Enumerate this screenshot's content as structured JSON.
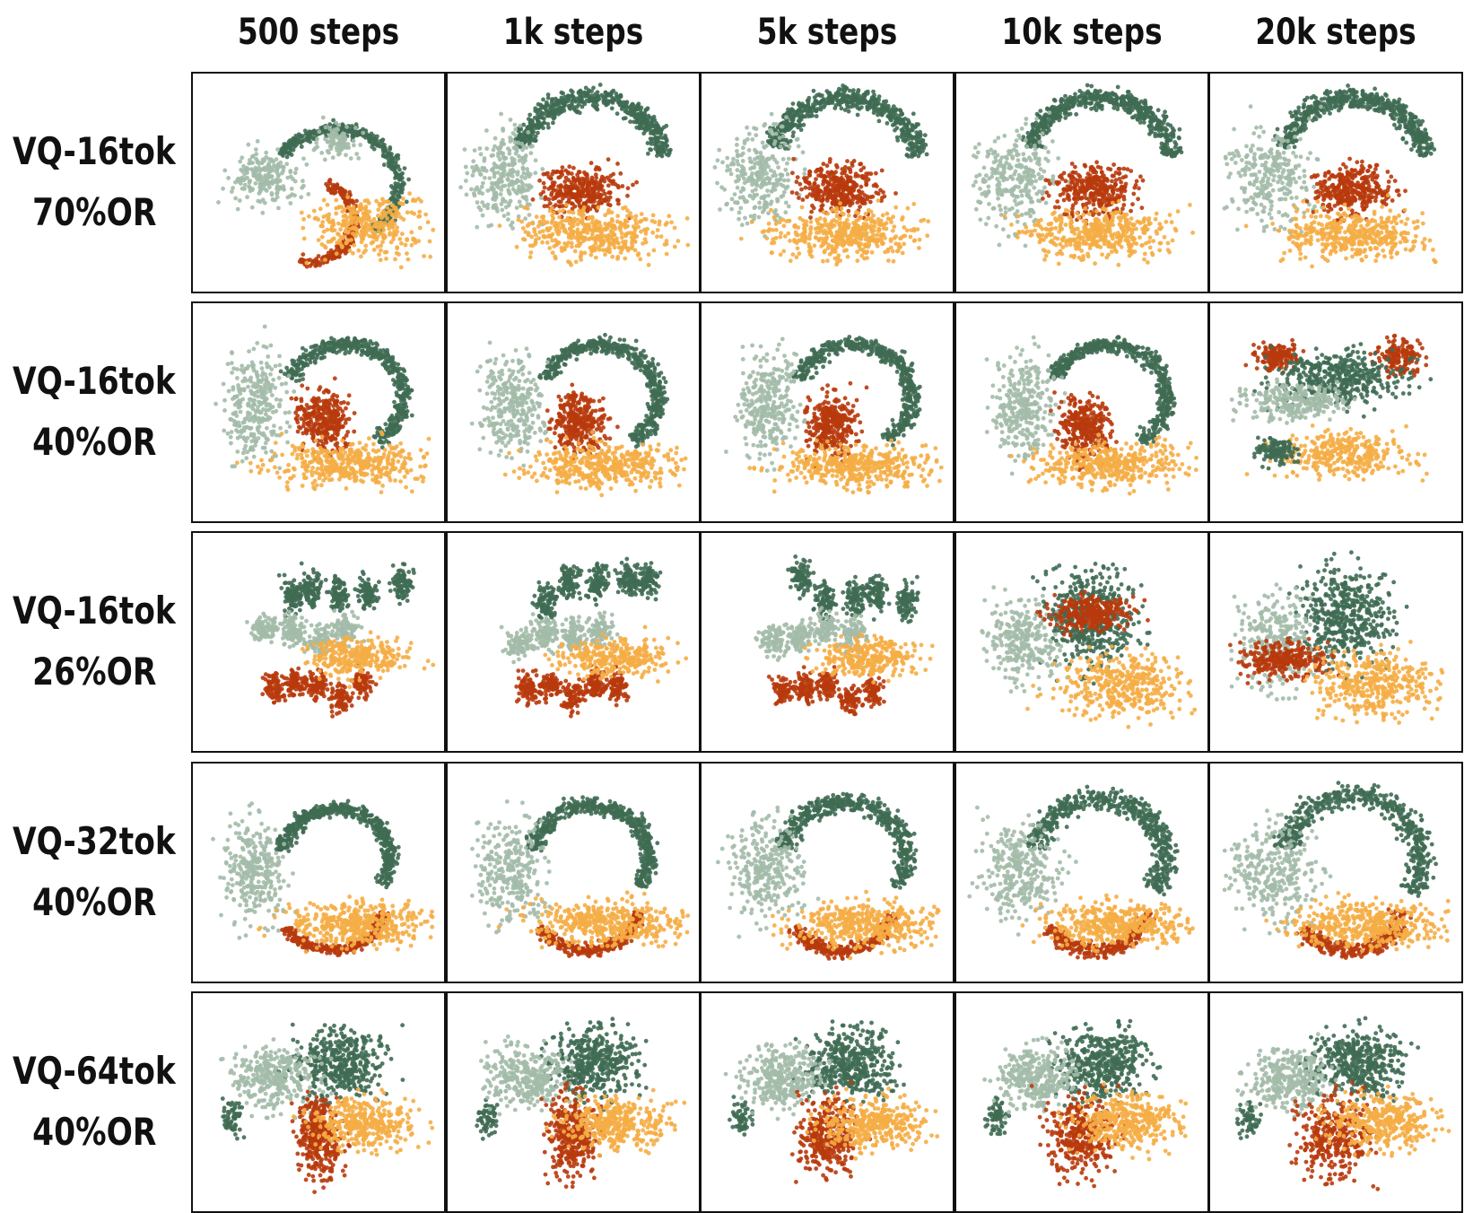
{
  "chart_data": {
    "type": "scatter",
    "columns": [
      "500 steps",
      "1k steps",
      "5k steps",
      "10k steps",
      "20k steps"
    ],
    "rows": [
      {
        "line1": "VQ-16tok",
        "line2": "70%OR"
      },
      {
        "line1": "VQ-16tok",
        "line2": "40%OR"
      },
      {
        "line1": "VQ-16tok",
        "line2": "26%OR"
      },
      {
        "line1": "VQ-32tok",
        "line2": "40%OR"
      },
      {
        "line1": "VQ-64tok",
        "line2": "40%OR"
      }
    ],
    "cluster_colors": [
      "#3f6b53",
      "#a3bba8",
      "#b83a0c",
      "#f5ad45"
    ],
    "grid": false,
    "axes_visible": false
  }
}
